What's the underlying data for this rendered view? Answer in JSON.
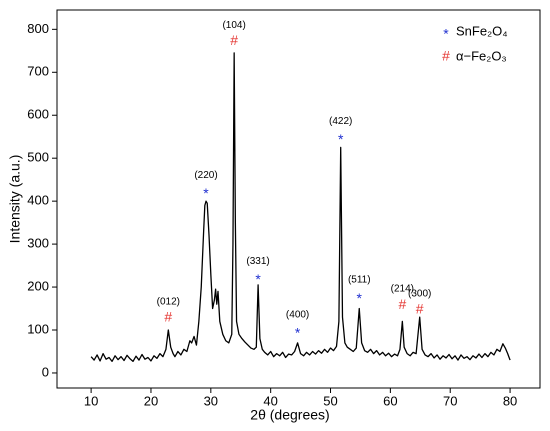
{
  "chart_data": {
    "type": "line",
    "x_label": "2θ (degrees)",
    "y_label": "Intensity (a.u.)",
    "color": "#000000",
    "xlim": [
      4.3,
      85
    ],
    "ylim": [
      -35,
      845
    ],
    "xticks": [
      10,
      20,
      30,
      40,
      50,
      60,
      70,
      80
    ],
    "yticks": [
      0,
      100,
      200,
      300,
      400,
      500,
      600,
      700,
      800
    ],
    "legend_position": "upper right",
    "legend": [
      {
        "symbol": "*",
        "name": "SnFe₂O₄",
        "color": "#1f2fd0"
      },
      {
        "symbol": "#",
        "name": "α−Fe₂O₃",
        "color": "#e53935"
      }
    ],
    "annotations": [
      {
        "label": "(012)",
        "symbol": "#",
        "x": 22.9,
        "y": 128
      },
      {
        "label": "(220)",
        "symbol": "*",
        "x": 29.2,
        "y": 423
      },
      {
        "label": "(104)",
        "symbol": "#",
        "x": 33.9,
        "y": 772
      },
      {
        "label": "(331)",
        "symbol": "*",
        "x": 37.9,
        "y": 223
      },
      {
        "label": "(400)",
        "symbol": "*",
        "x": 44.5,
        "y": 98
      },
      {
        "label": "(422)",
        "symbol": "*",
        "x": 51.7,
        "y": 549
      },
      {
        "label": "(511)",
        "symbol": "*",
        "x": 54.8,
        "y": 179
      },
      {
        "label": "(214)",
        "symbol": "#",
        "x": 62.0,
        "y": 158
      },
      {
        "label": "(300)",
        "symbol": "#",
        "x": 64.9,
        "y": 147
      }
    ],
    "x": [
      10,
      10.5,
      11,
      11.5,
      12,
      12.5,
      13,
      13.5,
      14,
      14.5,
      15,
      15.5,
      16,
      16.5,
      17,
      17.5,
      18,
      18.5,
      19,
      19.5,
      20,
      20.5,
      21,
      21.5,
      22,
      22.5,
      22.9,
      23.3,
      23.7,
      24,
      24.5,
      25,
      25.5,
      26,
      26.5,
      26.8,
      27.2,
      27.6,
      28,
      28.4,
      28.8,
      29.0,
      29.2,
      29.4,
      29.7,
      30.0,
      30.3,
      30.6,
      30.8,
      31.0,
      31.2,
      31.5,
      32,
      32.5,
      33,
      33.5,
      33.7,
      33.9,
      34.1,
      34.3,
      34.7,
      35.2,
      35.7,
      36.2,
      36.7,
      37.2,
      37.6,
      37.9,
      38.2,
      38.6,
      39,
      39.5,
      40,
      40.5,
      41,
      41.5,
      42,
      42.5,
      43,
      43.5,
      44,
      44.5,
      45,
      45.5,
      46,
      46.5,
      47,
      47.5,
      48,
      48.5,
      49,
      49.5,
      50,
      50.5,
      51,
      51.4,
      51.7,
      52.0,
      52.4,
      52.8,
      53.3,
      53.8,
      54.3,
      54.8,
      55.2,
      55.7,
      56.2,
      56.7,
      57.2,
      57.7,
      58.2,
      58.7,
      59.2,
      59.7,
      60.2,
      60.7,
      61.2,
      61.6,
      62.0,
      62.3,
      62.8,
      63.3,
      63.8,
      64.3,
      64.9,
      65.3,
      65.8,
      66.3,
      66.8,
      67.3,
      67.8,
      68.3,
      68.8,
      69.3,
      69.8,
      70.3,
      70.8,
      71.3,
      71.8,
      72.3,
      72.8,
      73.3,
      73.8,
      74.3,
      74.8,
      75.3,
      75.8,
      76.3,
      76.8,
      77.3,
      77.8,
      78.3,
      78.8,
      79.2,
      79.6,
      80
    ],
    "values": [
      38,
      30,
      42,
      28,
      45,
      32,
      36,
      27,
      40,
      31,
      38,
      29,
      41,
      33,
      27,
      39,
      30,
      43,
      32,
      36,
      28,
      40,
      34,
      45,
      38,
      55,
      100,
      60,
      45,
      38,
      50,
      42,
      55,
      50,
      75,
      70,
      85,
      65,
      120,
      200,
      330,
      390,
      400,
      395,
      320,
      230,
      150,
      170,
      195,
      160,
      190,
      120,
      90,
      75,
      70,
      90,
      300,
      745,
      350,
      120,
      90,
      80,
      72,
      65,
      58,
      55,
      60,
      205,
      80,
      55,
      48,
      42,
      50,
      38,
      45,
      40,
      48,
      36,
      44,
      42,
      50,
      70,
      45,
      40,
      48,
      42,
      50,
      44,
      52,
      46,
      55,
      48,
      58,
      52,
      62,
      120,
      525,
      130,
      70,
      60,
      55,
      50,
      58,
      150,
      70,
      52,
      48,
      55,
      45,
      52,
      42,
      48,
      40,
      46,
      38,
      44,
      40,
      55,
      120,
      60,
      45,
      40,
      48,
      45,
      130,
      55,
      42,
      38,
      45,
      35,
      42,
      32,
      40,
      35,
      43,
      33,
      40,
      30,
      42,
      34,
      38,
      31,
      40,
      35,
      44,
      36,
      45,
      38,
      48,
      42,
      55,
      50,
      68,
      58,
      45,
      30
    ]
  }
}
